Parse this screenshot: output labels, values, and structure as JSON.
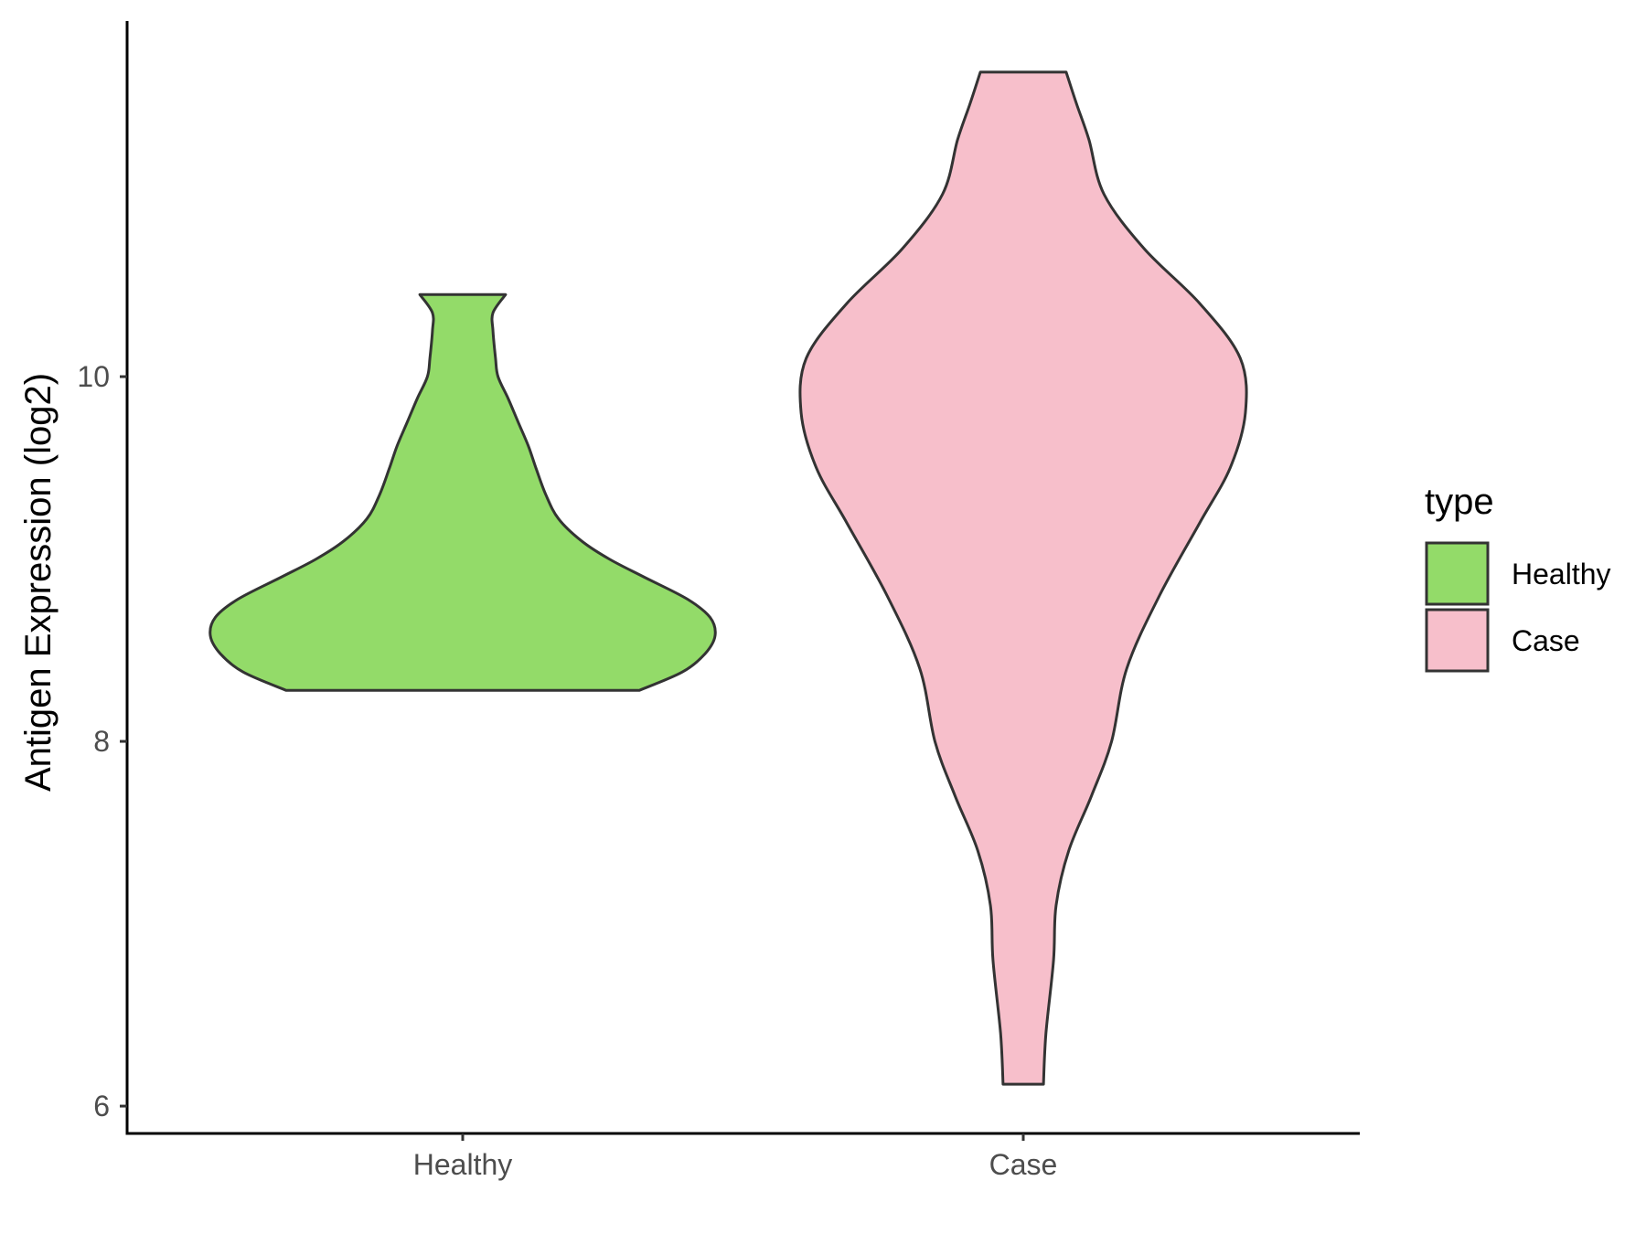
{
  "chart_data": {
    "type": "violin",
    "ylabel": "Antigen Expression (log2)",
    "xlabel": "",
    "ylim": [
      5.85,
      11.95
    ],
    "yticks": [
      6,
      8,
      10
    ],
    "categories": [
      "Healthy",
      "Case"
    ],
    "legend": {
      "title": "type",
      "placement": "right",
      "items": [
        "Healthy",
        "Case"
      ]
    },
    "series": [
      {
        "name": "Healthy",
        "color": "#93DB69",
        "min": 8.28,
        "max": 10.45,
        "density": [
          [
            8.28,
            0.7
          ],
          [
            8.38,
            0.87
          ],
          [
            8.48,
            0.96
          ],
          [
            8.58,
            1.0
          ],
          [
            8.68,
            0.98
          ],
          [
            8.78,
            0.89
          ],
          [
            8.9,
            0.72
          ],
          [
            9.0,
            0.58
          ],
          [
            9.1,
            0.47
          ],
          [
            9.22,
            0.38
          ],
          [
            9.35,
            0.33
          ],
          [
            9.5,
            0.29
          ],
          [
            9.62,
            0.26
          ],
          [
            9.75,
            0.22
          ],
          [
            9.88,
            0.18
          ],
          [
            10.0,
            0.14
          ],
          [
            10.1,
            0.13
          ],
          [
            10.25,
            0.12
          ],
          [
            10.35,
            0.12
          ],
          [
            10.45,
            0.17
          ]
        ]
      },
      {
        "name": "Case",
        "color": "#F7BFCB",
        "min": 6.12,
        "max": 11.67,
        "density": [
          [
            6.12,
            0.08
          ],
          [
            6.4,
            0.09
          ],
          [
            6.8,
            0.12
          ],
          [
            7.1,
            0.13
          ],
          [
            7.4,
            0.18
          ],
          [
            7.7,
            0.27
          ],
          [
            8.0,
            0.35
          ],
          [
            8.4,
            0.41
          ],
          [
            8.8,
            0.54
          ],
          [
            9.2,
            0.7
          ],
          [
            9.5,
            0.82
          ],
          [
            9.8,
            0.88
          ],
          [
            10.1,
            0.86
          ],
          [
            10.4,
            0.7
          ],
          [
            10.7,
            0.48
          ],
          [
            11.0,
            0.32
          ],
          [
            11.3,
            0.26
          ],
          [
            11.5,
            0.21
          ],
          [
            11.67,
            0.17
          ]
        ]
      }
    ]
  }
}
